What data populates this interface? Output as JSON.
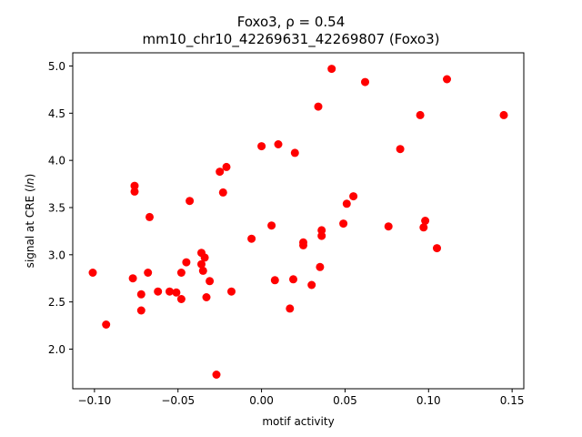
{
  "chart_data": {
    "type": "scatter",
    "title_line1": "Foxo3, ρ = 0.54",
    "title_line2": "mm10_chr10_42269631_42269807 (Foxo3)",
    "xlabel": "motif activity",
    "ylabel_prefix": "signal at CRE (",
    "ylabel_italic": "ln",
    "ylabel_suffix": ")",
    "xlim": [
      -0.113,
      0.157
    ],
    "ylim": [
      1.58,
      5.14
    ],
    "x_ticks": [
      -0.1,
      -0.05,
      0.0,
      0.05,
      0.1,
      0.15
    ],
    "x_tick_labels": [
      "−0.10",
      "−0.05",
      "0.00",
      "0.05",
      "0.10",
      "0.15"
    ],
    "y_ticks": [
      2.0,
      2.5,
      3.0,
      3.5,
      4.0,
      4.5,
      5.0
    ],
    "y_tick_labels": [
      "2.0",
      "2.5",
      "3.0",
      "3.5",
      "4.0",
      "4.5",
      "5.0"
    ],
    "grid": false,
    "marker_color": "#ff0000",
    "points": [
      {
        "x": -0.101,
        "y": 2.81
      },
      {
        "x": -0.093,
        "y": 2.26
      },
      {
        "x": -0.077,
        "y": 2.75
      },
      {
        "x": -0.076,
        "y": 3.73
      },
      {
        "x": -0.076,
        "y": 3.67
      },
      {
        "x": -0.072,
        "y": 2.58
      },
      {
        "x": -0.072,
        "y": 2.41
      },
      {
        "x": -0.068,
        "y": 2.81
      },
      {
        "x": -0.067,
        "y": 3.4
      },
      {
        "x": -0.062,
        "y": 2.61
      },
      {
        "x": -0.055,
        "y": 2.61
      },
      {
        "x": -0.051,
        "y": 2.6
      },
      {
        "x": -0.048,
        "y": 2.53
      },
      {
        "x": -0.048,
        "y": 2.81
      },
      {
        "x": -0.045,
        "y": 2.92
      },
      {
        "x": -0.043,
        "y": 3.57
      },
      {
        "x": -0.036,
        "y": 2.9
      },
      {
        "x": -0.036,
        "y": 3.02
      },
      {
        "x": -0.035,
        "y": 2.83
      },
      {
        "x": -0.034,
        "y": 2.97
      },
      {
        "x": -0.033,
        "y": 2.55
      },
      {
        "x": -0.031,
        "y": 2.72
      },
      {
        "x": -0.027,
        "y": 1.73
      },
      {
        "x": -0.025,
        "y": 3.88
      },
      {
        "x": -0.023,
        "y": 3.66
      },
      {
        "x": -0.021,
        "y": 3.93
      },
      {
        "x": -0.018,
        "y": 2.61
      },
      {
        "x": -0.006,
        "y": 3.17
      },
      {
        "x": 0.0,
        "y": 4.15
      },
      {
        "x": 0.006,
        "y": 3.31
      },
      {
        "x": 0.008,
        "y": 2.73
      },
      {
        "x": 0.01,
        "y": 4.17
      },
      {
        "x": 0.017,
        "y": 2.43
      },
      {
        "x": 0.019,
        "y": 2.74
      },
      {
        "x": 0.02,
        "y": 4.08
      },
      {
        "x": 0.025,
        "y": 3.13
      },
      {
        "x": 0.025,
        "y": 3.1
      },
      {
        "x": 0.03,
        "y": 2.68
      },
      {
        "x": 0.034,
        "y": 4.57
      },
      {
        "x": 0.035,
        "y": 2.87
      },
      {
        "x": 0.036,
        "y": 3.26
      },
      {
        "x": 0.036,
        "y": 3.2
      },
      {
        "x": 0.042,
        "y": 4.97
      },
      {
        "x": 0.049,
        "y": 3.33
      },
      {
        "x": 0.051,
        "y": 3.54
      },
      {
        "x": 0.055,
        "y": 3.62
      },
      {
        "x": 0.062,
        "y": 4.83
      },
      {
        "x": 0.076,
        "y": 3.3
      },
      {
        "x": 0.083,
        "y": 4.12
      },
      {
        "x": 0.095,
        "y": 4.48
      },
      {
        "x": 0.097,
        "y": 3.29
      },
      {
        "x": 0.098,
        "y": 3.36
      },
      {
        "x": 0.105,
        "y": 3.07
      },
      {
        "x": 0.111,
        "y": 4.86
      },
      {
        "x": 0.145,
        "y": 4.48
      }
    ]
  }
}
